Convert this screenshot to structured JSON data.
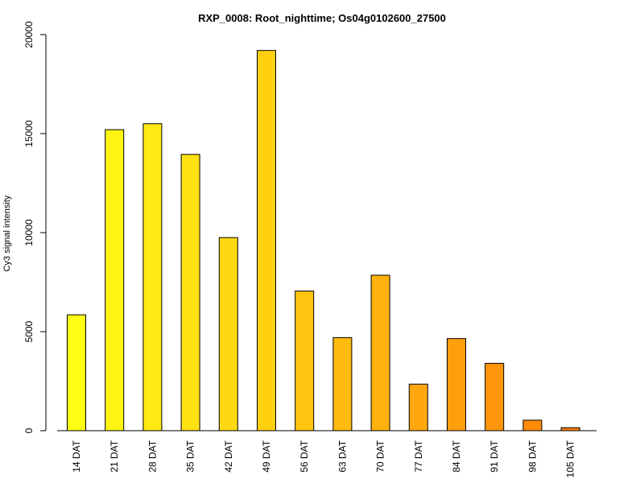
{
  "chart_data": {
    "type": "bar",
    "title": "RXP_0008: Root_nighttime; Os04g0102600_27500",
    "xlabel": "",
    "ylabel": "Cy3 signal intensity",
    "ylim": [
      0,
      20000
    ],
    "yticks": [
      0,
      5000,
      10000,
      15000,
      20000
    ],
    "categories": [
      "14 DAT",
      "21 DAT",
      "28 DAT",
      "35 DAT",
      "42 DAT",
      "49 DAT",
      "56 DAT",
      "63 DAT",
      "70 DAT",
      "77 DAT",
      "84 DAT",
      "91 DAT",
      "98 DAT",
      "105 DAT"
    ],
    "values": [
      5850,
      15200,
      15500,
      13950,
      9750,
      19200,
      7050,
      4700,
      7850,
      2350,
      4650,
      3400,
      530,
      150
    ],
    "colors": [
      "#FFFF15",
      "#FFF414",
      "#FFEA13",
      "#FFE112",
      "#FFD811",
      "#FFCF10",
      "#FFC50F",
      "#FFBB0E",
      "#FFB20D",
      "#FFA70C",
      "#FF9F0B",
      "#FF950A",
      "#FF8B09",
      "#FF8208"
    ],
    "grid": false,
    "legend": "none"
  }
}
